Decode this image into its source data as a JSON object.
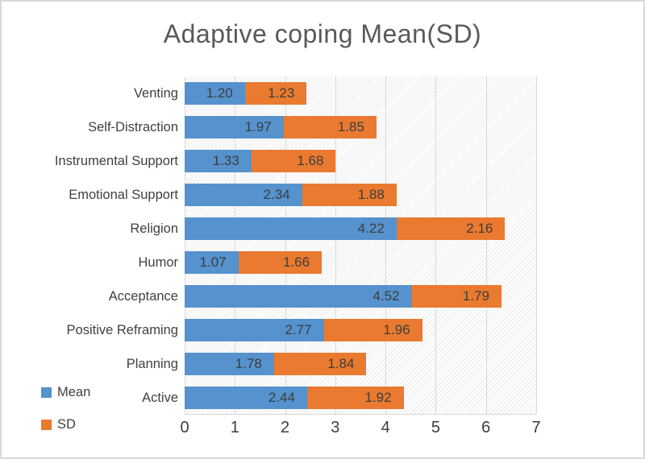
{
  "title": "Adaptive coping Mean(SD)",
  "colors": {
    "mean_blue": "#5592CE",
    "sd_orange": "#E97A2F",
    "title_gray": "#595959",
    "axis_text": "#3d3d3d",
    "gridline": "#d9d9d9"
  },
  "legend": {
    "mean_label": "Mean",
    "sd_label": "SD"
  },
  "chart_data": {
    "type": "bar",
    "orientation": "horizontal-stacked",
    "title": "Adaptive coping Mean(SD)",
    "categories": [
      "Venting",
      "Self-Distraction",
      "Instrumental Support",
      "Emotional Support",
      "Religion",
      "Humor",
      "Acceptance",
      "Positive Reframing",
      "Planning",
      "Active"
    ],
    "series": [
      {
        "name": "Mean",
        "color": "#5592CE",
        "values": [
          1.2,
          1.97,
          1.33,
          2.34,
          4.22,
          1.07,
          4.52,
          2.77,
          1.78,
          2.44
        ]
      },
      {
        "name": "SD",
        "color": "#E97A2F",
        "values": [
          1.23,
          1.85,
          1.68,
          1.88,
          2.16,
          1.66,
          1.79,
          1.96,
          1.84,
          1.92
        ]
      }
    ],
    "value_label_format": "2-decimals",
    "value_label_position": "inside-end",
    "xlim": [
      0,
      7
    ],
    "x_ticks": [
      0,
      1,
      2,
      3,
      4,
      5,
      6,
      7
    ],
    "grid": true,
    "plot_background": "light-diagonal-hatch",
    "legend_position": "bottom-left"
  }
}
